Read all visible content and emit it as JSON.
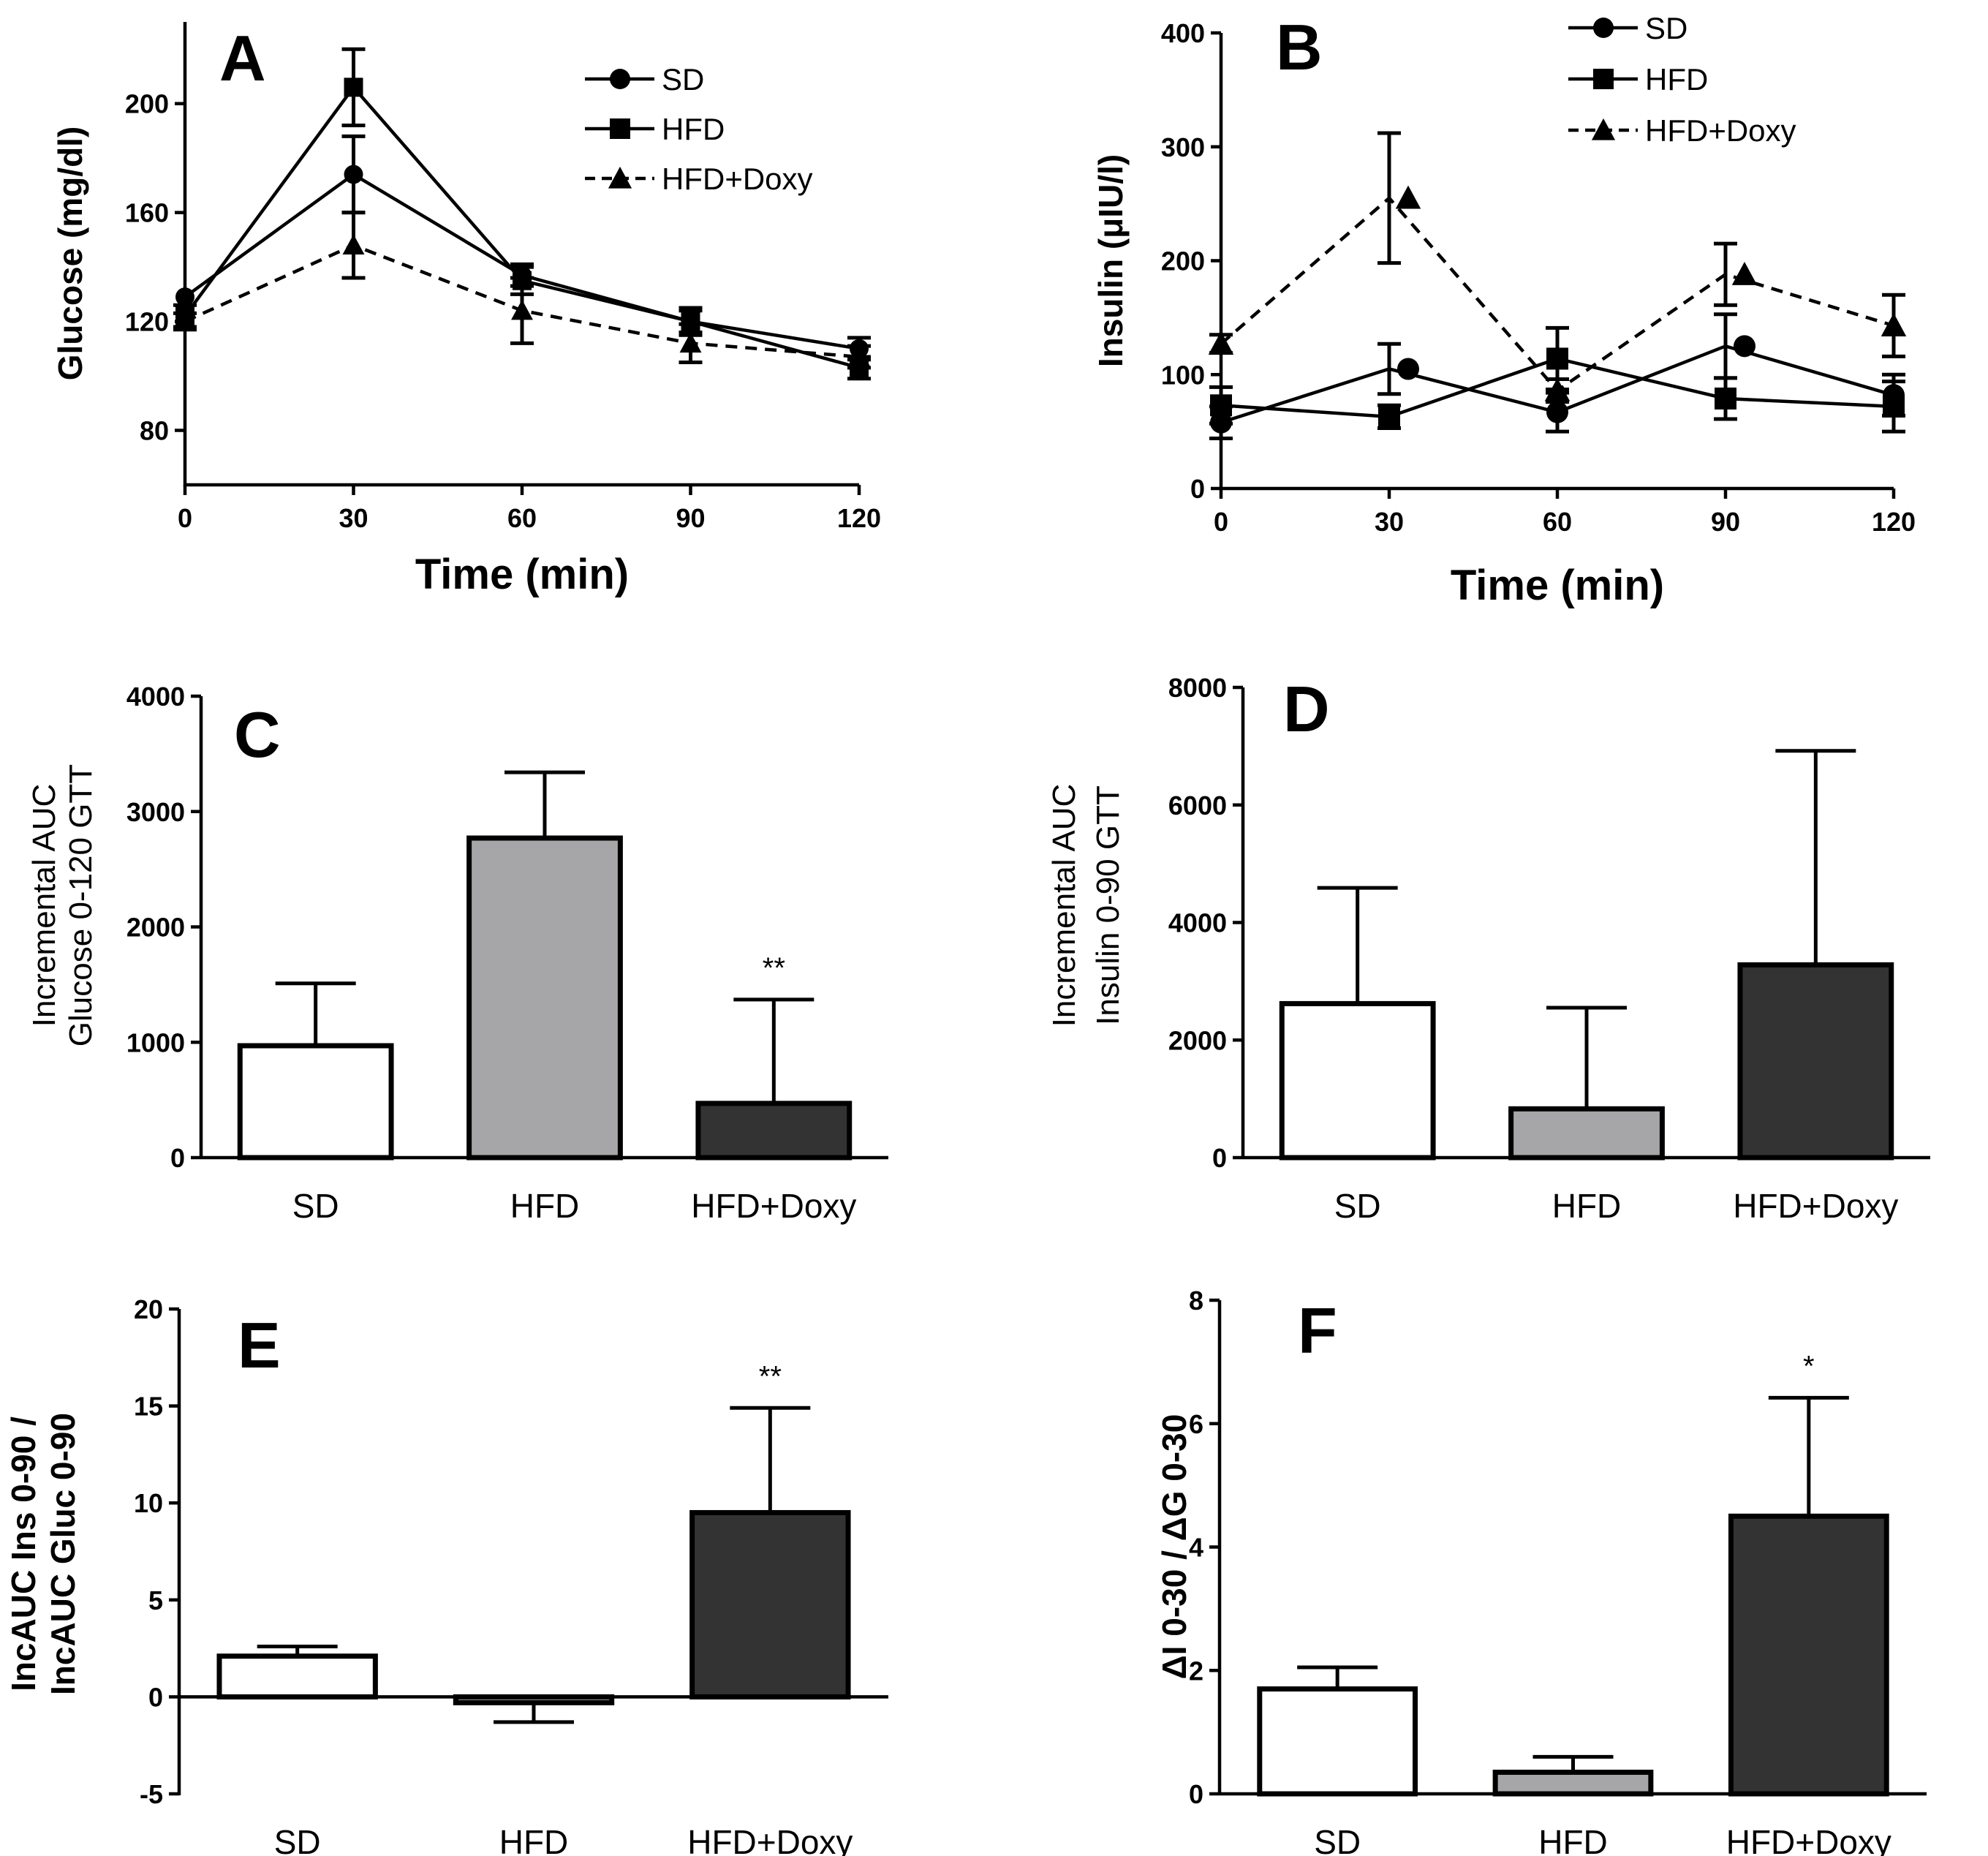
{
  "figure": {
    "colors": {
      "SD": "#ffffff",
      "HFD": "#a6a6a8",
      "HFD+Doxy": "#333333",
      "line": "#000000"
    }
  },
  "chart_data": [
    {
      "id": "A",
      "type": "line",
      "panel_label": "A",
      "xlabel": "Time (min)",
      "ylabel": "Glucose (mg/dl)",
      "x": [
        0,
        30,
        60,
        90,
        120
      ],
      "xlim": [
        0,
        120
      ],
      "ylim": [
        60,
        230
      ],
      "xticks": [
        "0",
        "30",
        "60",
        "90",
        "120"
      ],
      "yticks": [
        80,
        120,
        160,
        200
      ],
      "yticklabels": [
        "80",
        "120",
        "160",
        "200"
      ],
      "legend": [
        "SD",
        "HFD",
        "HFD+Doxy"
      ],
      "series": [
        {
          "name": "SD",
          "marker": "circle",
          "dash": false,
          "values": [
            129,
            174,
            137,
            120,
            110
          ],
          "errors": [
            0,
            14,
            4,
            4,
            4
          ]
        },
        {
          "name": "HFD",
          "marker": "square",
          "dash": false,
          "values": [
            122,
            206,
            135,
            120,
            103
          ],
          "errors": [
            4,
            14,
            5,
            5,
            4
          ]
        },
        {
          "name": "HFD+Doxy",
          "marker": "triangle",
          "dash": true,
          "values": [
            120,
            148,
            124,
            112,
            107
          ],
          "errors": [
            3,
            12,
            12,
            7,
            4
          ]
        }
      ]
    },
    {
      "id": "B",
      "type": "line",
      "panel_label": "B",
      "xlabel": "Time (min)",
      "ylabel": "Insulin (μIU/l)",
      "x": [
        0,
        30,
        60,
        90,
        120
      ],
      "xlim": [
        0,
        120
      ],
      "ylim": [
        0,
        400
      ],
      "xticks": [
        "0",
        "30",
        "60",
        "90",
        "120"
      ],
      "yticks": [
        0,
        100,
        200,
        300,
        400
      ],
      "yticklabels": [
        "0",
        "100",
        "200",
        "300",
        "400"
      ],
      "legend": [
        "SD",
        "HFD",
        "HFD+Doxy"
      ],
      "series": [
        {
          "name": "SD",
          "marker": "circle",
          "dash": false,
          "values": [
            58,
            105,
            67,
            125,
            82
          ],
          "errors": [
            14,
            22,
            17,
            28,
            18
          ],
          "marker_offset": 5
        },
        {
          "name": "HFD",
          "marker": "square",
          "dash": false,
          "values": [
            73,
            63,
            114,
            79,
            72
          ],
          "errors": [
            16,
            10,
            27,
            18,
            22
          ],
          "marker_offset": 0
        },
        {
          "name": "HFD+Doxy",
          "marker": "triangle",
          "dash": true,
          "values": [
            127,
            255,
            86,
            188,
            143
          ],
          "errors": [
            8,
            57,
            10,
            27,
            27
          ],
          "marker_offset": 5
        }
      ]
    },
    {
      "id": "C",
      "type": "bar",
      "panel_label": "C",
      "ylabel_lines": [
        "Incremental AUC",
        "Glucose 0-120   GTT"
      ],
      "categories": [
        "SD",
        "HFD",
        "HFD+Doxy"
      ],
      "values": [
        970,
        2770,
        470
      ],
      "errors": [
        540,
        570,
        900
      ],
      "ylim": [
        0,
        4000
      ],
      "yticks": [
        0,
        1000,
        2000,
        3000,
        4000
      ],
      "yticklabels": [
        "0",
        "1000",
        "2000",
        "3000",
        "4000"
      ],
      "annotations": [
        "",
        "",
        "**"
      ]
    },
    {
      "id": "D",
      "type": "bar",
      "panel_label": "D",
      "ylabel_lines": [
        "Incremental AUC",
        "Insulin 0-90   GTT"
      ],
      "categories": [
        "SD",
        "HFD",
        "HFD+Doxy"
      ],
      "values": [
        2620,
        830,
        3280
      ],
      "errors": [
        1970,
        1720,
        3640
      ],
      "ylim": [
        0,
        8000
      ],
      "yticks": [
        0,
        2000,
        4000,
        6000,
        8000
      ],
      "yticklabels": [
        "0",
        "2000",
        "4000",
        "6000",
        "8000"
      ],
      "annotations": [
        "",
        "",
        ""
      ]
    },
    {
      "id": "E",
      "type": "bar",
      "panel_label": "E",
      "ylabel_lines": [
        "IncAUC Ins 0-90 /",
        "IncAUC Gluc 0-90"
      ],
      "categories": [
        "SD",
        "HFD",
        "HFD+Doxy"
      ],
      "values": [
        2.1,
        -0.3,
        9.5
      ],
      "errors": [
        0.5,
        1.0,
        5.4
      ],
      "ylim": [
        -5,
        20
      ],
      "yticks": [
        -5,
        0,
        5,
        10,
        15,
        20
      ],
      "yticklabels": [
        "-5",
        "0",
        "5",
        "10",
        "15",
        "20"
      ],
      "annotations": [
        "",
        "",
        "**"
      ]
    },
    {
      "id": "F",
      "type": "bar",
      "panel_label": "F",
      "ylabel_lines": [
        "ΔI 0-30 / ΔG 0-30"
      ],
      "categories": [
        "SD",
        "HFD",
        "HFD+Doxy"
      ],
      "values": [
        1.7,
        0.35,
        4.5
      ],
      "errors": [
        0.35,
        0.25,
        1.92
      ],
      "ylim": [
        0,
        8
      ],
      "yticks": [
        0,
        2,
        4,
        6,
        8
      ],
      "yticklabels": [
        "0",
        "2",
        "4",
        "6",
        "8"
      ],
      "annotations": [
        "",
        "",
        "*"
      ]
    }
  ]
}
